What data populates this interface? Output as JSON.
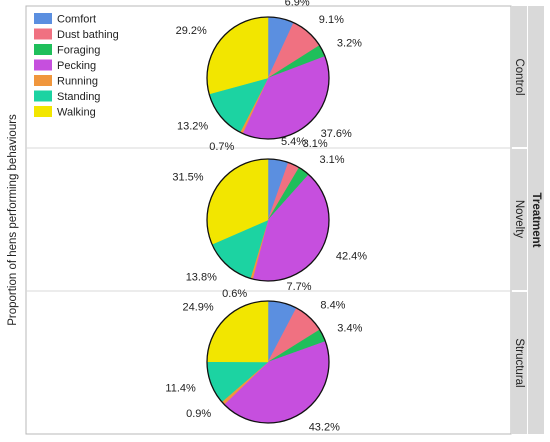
{
  "y_axis_label": "Proportion of hens performing behaviours",
  "facet_group_label": "Treatment",
  "legend": {
    "placement": "top-left",
    "entries": [
      {
        "label": "Comfort",
        "color": "#5b8fe0"
      },
      {
        "label": "Dust bathing",
        "color": "#f07181"
      },
      {
        "label": "Foraging",
        "color": "#1fbf5b"
      },
      {
        "label": "Pecking",
        "color": "#c64fde"
      },
      {
        "label": "Running",
        "color": "#f0963c"
      },
      {
        "label": "Standing",
        "color": "#1cd3a2"
      },
      {
        "label": "Walking",
        "color": "#f2e600"
      }
    ]
  },
  "chart_data": {
    "type": "pie",
    "categories": [
      "Comfort",
      "Dust bathing",
      "Foraging",
      "Pecking",
      "Running",
      "Standing",
      "Walking"
    ],
    "facets": [
      {
        "name": "Control",
        "values": [
          6.9,
          9.1,
          3.2,
          37.6,
          0.7,
          13.2,
          29.2
        ],
        "labels": [
          "6.9%",
          "9.1%",
          "3.2%",
          "37.6%",
          "0.7%",
          "13.2%",
          "29.2%"
        ]
      },
      {
        "name": "Novelty",
        "values": [
          5.4,
          3.1,
          3.1,
          42.4,
          0.6,
          13.8,
          31.5
        ],
        "labels": [
          "5.4%",
          "3.1%",
          "3.1%",
          "42.4%",
          "0.6%",
          "13.8%",
          "31.5%"
        ]
      },
      {
        "name": "Structural",
        "values": [
          7.7,
          8.4,
          3.4,
          43.2,
          0.9,
          11.4,
          24.9
        ],
        "labels": [
          "7.7%",
          "8.4%",
          "3.4%",
          "43.2%",
          "0.9%",
          "11.4%",
          "24.9%"
        ]
      }
    ]
  }
}
